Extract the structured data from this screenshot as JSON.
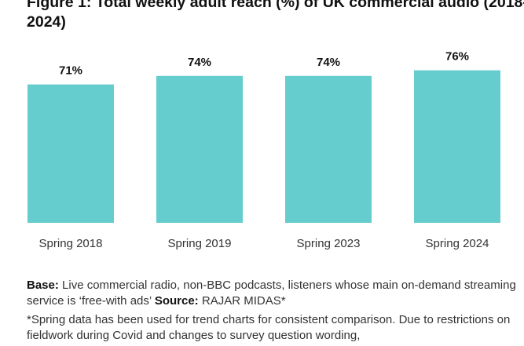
{
  "chart_data": {
    "type": "bar",
    "title": "Figure 1: Total weekly adult reach (%) of UK commercial audio (2018-2024)",
    "categories": [
      "Spring 2018",
      "Spring 2019",
      "Spring 2023",
      "Spring 2024"
    ],
    "values": [
      71,
      74,
      74,
      76
    ],
    "data_labels": [
      "71%",
      "74%",
      "74%",
      "76%"
    ],
    "xlabel": "",
    "ylabel": "",
    "ylim": [
      22,
      100
    ],
    "grid": false,
    "legend": "none",
    "bar_color": "#66CDCE"
  },
  "notes": {
    "base_label": "Base:",
    "base_text": " Live commercial radio, non-BBC podcasts, listeners whose main on-demand streaming service is ‘free-with ads’ ",
    "source_label": "Source:",
    "source_text": " RAJAR MIDAS*",
    "footnote": "*Spring data has been used for trend charts for consistent comparison. Due to restrictions on fieldwork during Covid and changes to survey question wording,"
  }
}
